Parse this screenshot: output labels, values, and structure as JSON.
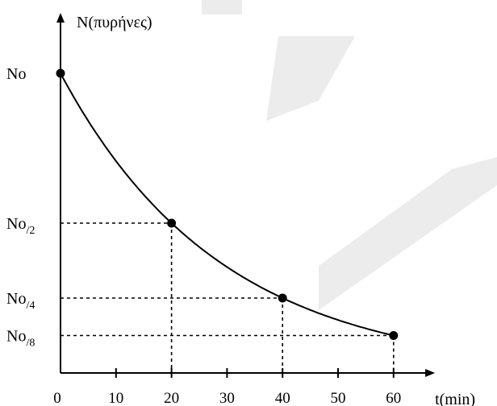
{
  "colors": {
    "ink": "#000000",
    "watermark": "#ececec"
  },
  "chart_data": {
    "type": "line",
    "xlabel": "t(min)",
    "ylabel": "N(πυρήνες)",
    "xlim": [
      0,
      66
    ],
    "ylim": [
      0,
      1
    ],
    "x_ticks": [
      0,
      10,
      20,
      30,
      40,
      50,
      60
    ],
    "x_tick_labels": [
      "0",
      "10",
      "20",
      "30",
      "40",
      "50",
      "60"
    ],
    "y_labels": [
      {
        "value": 1,
        "main": "No",
        "sub": ""
      },
      {
        "value": 0.5,
        "main": "No",
        "sub": "/2"
      },
      {
        "value": 0.25,
        "main": "No",
        "sub": "/4"
      },
      {
        "value": 0.125,
        "main": "No",
        "sub": "/8"
      }
    ],
    "series": [
      {
        "curve": "exponential decay",
        "half_life": 20,
        "x": [
          0,
          20,
          40,
          60
        ],
        "y": [
          1,
          0.5,
          0.25,
          0.125
        ]
      }
    ],
    "marked_points": [
      [
        0,
        1
      ],
      [
        20,
        0.5
      ],
      [
        40,
        0.25
      ],
      [
        60,
        0.125
      ]
    ],
    "grid": false,
    "guide_lines": "dotted"
  }
}
